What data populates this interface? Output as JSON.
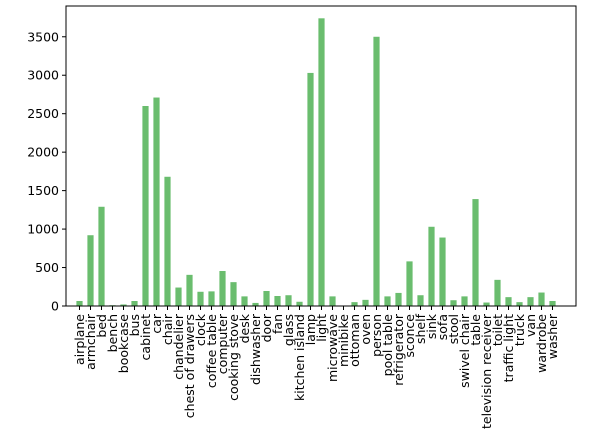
{
  "chart_data": {
    "type": "bar",
    "title": "",
    "xlabel": "",
    "ylabel": "",
    "ylim": [
      0,
      3900
    ],
    "yticks": [
      0,
      500,
      1000,
      1500,
      2000,
      2500,
      3000,
      3500
    ],
    "grid": false,
    "legend": "none",
    "bar_color": "#6abd6e",
    "categories": [
      "airplane",
      "armchair",
      "bed",
      "bench",
      "bookcase",
      "bus",
      "cabinet",
      "car",
      "chair",
      "chandelier",
      "chest of drawers",
      "clock",
      "coffee table",
      "computer",
      "cooking stove",
      "desk",
      "dishwasher",
      "door",
      "fan",
      "glass",
      "kitchen island",
      "lamp",
      "light",
      "microwave",
      "minibike",
      "ottoman",
      "oven",
      "person",
      "pool table",
      "refrigerator",
      "sconce",
      "shelf",
      "sink",
      "sofa",
      "stool",
      "swivel chair",
      "table",
      "television receiver",
      "toilet",
      "traffic light",
      "truck",
      "van",
      "wardrobe",
      "washer"
    ],
    "values": [
      65,
      920,
      1290,
      10,
      20,
      65,
      2600,
      2710,
      1680,
      240,
      405,
      185,
      190,
      455,
      310,
      125,
      40,
      195,
      130,
      140,
      55,
      3030,
      3740,
      125,
      5,
      50,
      80,
      3500,
      125,
      170,
      580,
      140,
      1030,
      890,
      75,
      125,
      1390,
      45,
      340,
      115,
      50,
      115,
      175,
      65
    ]
  }
}
